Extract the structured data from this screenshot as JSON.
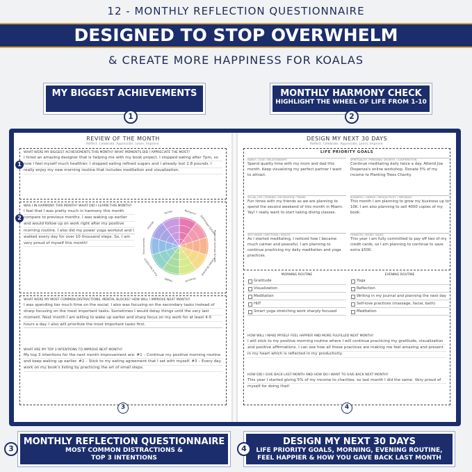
{
  "header": {
    "top_line": "12 - MONTHLY REFLECTION QUESTIONNAIRE",
    "banner": "DESIGNED TO STOP OVERWHELM",
    "tagline": "& CREATE MORE HAPPINESS FOR KOALAS"
  },
  "callouts": [
    {
      "number": "1",
      "title": "MY BIGGEST ACHIEVEMENTS"
    },
    {
      "number": "2",
      "title": "MONTHLY HARMONY CHECK",
      "lines": [
        "HIGHLIGHT THE WHEEL OF LIFE FROM 1-10"
      ]
    },
    {
      "number": "3",
      "title": "MONTHLY REFLECTION QUESTIONNAIRE",
      "lines": [
        "MOST COMMON DISTRACTIONS &",
        "TOP 3 INTENTIONS"
      ]
    },
    {
      "number": "4",
      "title": "DESIGN MY NEXT 30 DAYS",
      "lines": [
        "LIFE PRIORITY GOALS, MORNING, EVENING ROUTINE,",
        "FEEL HAPPIER & HOW YOU GAVE BACK LAST MONTH"
      ]
    }
  ],
  "left_page": {
    "title": "REVIEW OF THE MONTH",
    "subtitle": "Reflect. Celebrate. Appreciate. Learn. Improve.",
    "bottom_marker": "3",
    "sections": [
      {
        "marker": "1",
        "question": "WHAT WERE MY BIGGEST ACHIEVEMENTS THIS MONTH? WHAT MOMENTS DID I APPRECIATE THE MOST?",
        "answer": "I hired an amazing designer that is helping me with my book project. I stopped eating after 7pm, so now I feel myself much healthier. I stopped eating refined sugars and I already lost 2.8 pounds. I really enjoy my new morning routine that includes meditation and visualization."
      },
      {
        "marker": "2",
        "question": "WAS I IN HARMONY THIS MONTH? WHAT DID I LEARN THIS MONTH?",
        "answer": "I feel that I was pretty much in harmony this month compare to previous months. I was waking up earlier and would follow up on work right after my positive morning routine. I also did my power yoga workout and I walked every day for over 10 thousand steps. So, I am very proud of myself this month!"
      },
      {
        "question": "WHAT WERE MY MOST COMMON DISTRACTIONS, MENTAL BLOCKS? HOW WILL I IMPROVE NEXT MONTH?",
        "answer": "I was spending too much time on the social. I also was focusing on the secondary tasks instead of sharp focusing on the most important tasks. Sometimes I would delay things until the very last moment. Next month I am willing to wake up earlier and sharp focus on my work for at least 4-5 hours a day. I also will prioritize the most important tasks first."
      },
      {
        "question": "WHAT ARE MY TOP 3 INTENTIONS TO IMPROVE NEXT MONTH?",
        "answer": "My top 3 intentions for the next month improvement are: #1 – Continue my positive morning routine and keep waking up earlier. #2 – Stick to my eating agreement that I set with myself. #3 – Every day work on my book's listing by practicing the art of small steps."
      }
    ],
    "wheel_labels": [
      "Romance",
      "Self-Image/ Esteem",
      "Personal/ Spiritual Growth",
      "Career/ Business",
      "Finances",
      "Health",
      "Fun & Recreation",
      "Environment",
      "Friends",
      "Family"
    ]
  },
  "right_page": {
    "title": "DESIGN MY NEXT 30 DAYS",
    "subtitle": "Reflect. Celebrate. Appreciate. Learn. Improve.",
    "bottom_marker": "4",
    "goals_heading": "LIFE PRIORITY GOALS",
    "goals": [
      {
        "label": "FAMILY / LOVE / RELATIONSHIPS",
        "text": "Spend quality time with my mom and dad this month. Keep visualizing my perfect partner I want to attract."
      },
      {
        "label": "SPIRITUALITY / PERSONAL GROWTH / CONTRIBUTION",
        "text": "Continue meditating daily twice a day. Attend Joe Dispenza's online workshop. Donate 5% of my income to Planting Trees Charity."
      },
      {
        "label": "SOCIAL LIFE / FRIENDS / RECREATION / TRAVEL",
        "text": "Fun times with my friends as we are planning to spend the second weekend of this month in Miami. Yay! I really want to start taking diving classes."
      },
      {
        "label": "BUSINESS / CAREER / PRODUCTIVITY / PRESENCE",
        "text": "This month I am planning to grow my business up to 10K. I am also planning to sell 4000 copies of my book."
      },
      {
        "label": "SELF-IMAGE / EMOTIONS / HEALTH",
        "text": "As I started meditating, I noticed how I became much calmer and peaceful. I am planning to continue practicing my daily meditation and yoga practices."
      },
      {
        "label": "FINANCES / MONEY SAVED",
        "text": "This year I am fully committed to pay off two of my credit cards, so I am planning to continue to save extra $500."
      }
    ],
    "morning": {
      "heading": "MORNING ROUTINE",
      "items": [
        "Gratitude",
        "Visualization",
        "Meditation",
        "HIIT",
        "Smart yoga stretching work sharply focused"
      ]
    },
    "evening": {
      "heading": "EVENING ROUTINE",
      "items": [
        "Yoga",
        "Reflection",
        "Writing in my journal and planning the next day",
        "Self-love practices (massage, facial, bath)",
        "Meditation"
      ]
    },
    "questions": [
      {
        "question": "HOW WILL I MAKE MYSELF FEEL HAPPIER AND MORE FULFILLED NEXT MONTH?",
        "answer": "I will stick to my positive morning routine where I will continue practicing my gratitude, visualization and positive affirmations. I can see how all these practices are making me feel amazing and present in my heart which is reflected in my productivity."
      },
      {
        "question": "HOW DID I GIVE BACK LAST MONTH AND HOW DO I WANT TO GIVE BACK NEXT MONTH?",
        "answer": "This year I started giving 5% of my income to charities, so last month I did the same. Very proud of myself for doing that!"
      }
    ]
  }
}
